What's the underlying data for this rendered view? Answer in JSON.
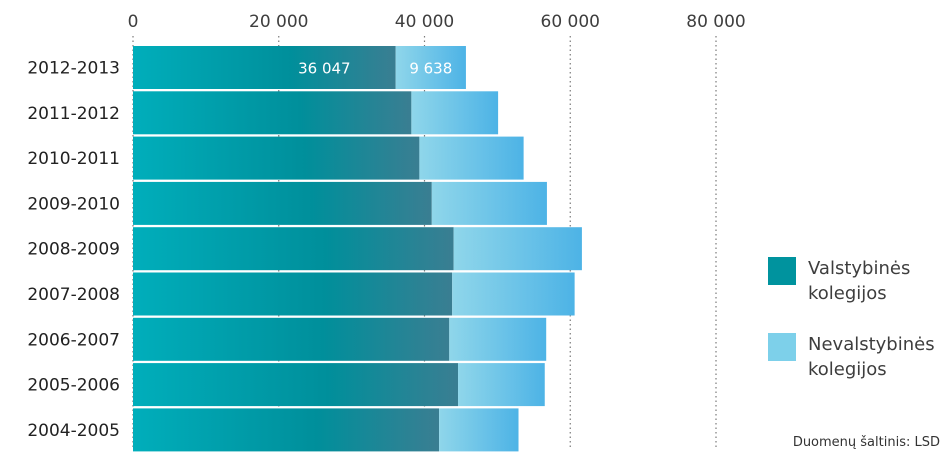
{
  "chart_data": {
    "type": "bar",
    "orientation": "horizontal",
    "stacked": true,
    "categories": [
      "2012-2013",
      "2011-2012",
      "2010-2011",
      "2009-2010",
      "2008-2009",
      "2007-2008",
      "2006-2007",
      "2005-2006",
      "2004-2005"
    ],
    "series": [
      {
        "name": "Valstybinės kolegijos",
        "values": [
          36047,
          38200,
          39300,
          41000,
          44000,
          43800,
          43400,
          44600,
          42000
        ]
      },
      {
        "name": "Nevalstybinės kolegijos",
        "values": [
          9638,
          11900,
          14300,
          15800,
          17600,
          16800,
          13300,
          11900,
          10900
        ]
      }
    ],
    "data_labels": [
      "36 047",
      "9 638"
    ],
    "xlim": [
      0,
      80000
    ],
    "x_ticks": [
      {
        "value": 0,
        "label": "0"
      },
      {
        "value": 20000,
        "label": "20 000"
      },
      {
        "value": 40000,
        "label": "40 000"
      },
      {
        "value": 60000,
        "label": "60 000"
      },
      {
        "value": 80000,
        "label": "80 000"
      }
    ],
    "grid": "dotted vertical",
    "legend": {
      "position": "right",
      "items": [
        {
          "lines": [
            "Valstybinės",
            "kolegijos"
          ],
          "color": "#00939e"
        },
        {
          "lines": [
            "Nevalstybinės",
            "kolegijos"
          ],
          "color": "#7dd0ea"
        }
      ]
    },
    "source": "Duomenų šaltinis: LSD",
    "colors": {
      "state_start": "#00aebb",
      "state_mid": "#008f9b",
      "state_end": "#3a7e92",
      "private_start": "#8fd6ea",
      "private_end": "#4db3e6"
    }
  }
}
